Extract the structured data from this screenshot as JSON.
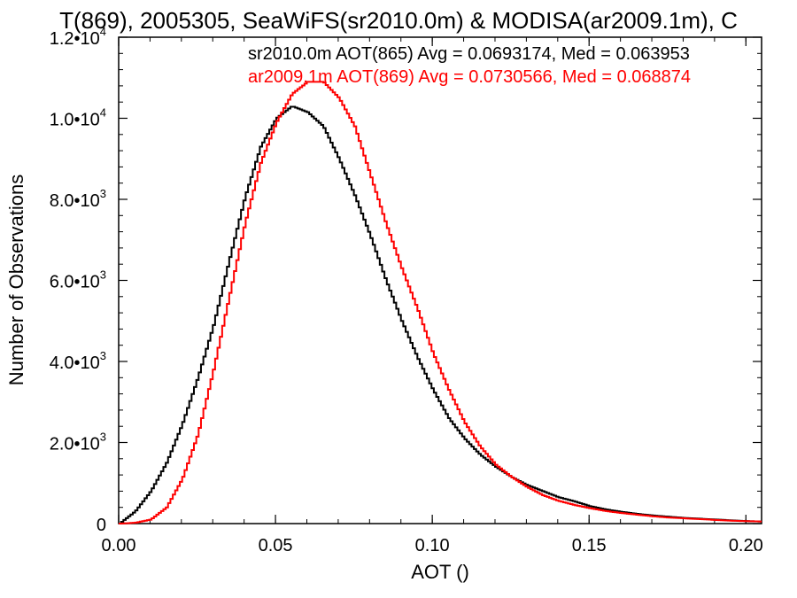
{
  "chart_data": {
    "type": "line",
    "title": "T(869), 2005305, SeaWiFS(sr2010.0m) & MODISA(ar2009.1m), C",
    "xlabel": "AOT ()",
    "ylabel": "Number of Observations",
    "xlim": [
      0.0,
      0.205
    ],
    "ylim": [
      0,
      12000
    ],
    "x_ticks": [
      "0.00",
      "0.05",
      "0.10",
      "0.15",
      "0.20"
    ],
    "x_tick_values": [
      0.0,
      0.05,
      0.1,
      0.15,
      0.2
    ],
    "y_ticks": [
      {
        "value": 0,
        "mantissa": "0",
        "exp": ""
      },
      {
        "value": 2000,
        "mantissa": "2.0•10",
        "exp": "3"
      },
      {
        "value": 4000,
        "mantissa": "4.0•10",
        "exp": "3"
      },
      {
        "value": 6000,
        "mantissa": "6.0•10",
        "exp": "3"
      },
      {
        "value": 8000,
        "mantissa": "8.0•10",
        "exp": "3"
      },
      {
        "value": 10000,
        "mantissa": "1.0•10",
        "exp": "4"
      },
      {
        "value": 12000,
        "mantissa": "1.2•10",
        "exp": "4"
      }
    ],
    "grid": false,
    "legend_position": "top-right",
    "series": [
      {
        "name": "sr2010.0m AOT(865) Avg = 0.0693174, Med = 0.063953",
        "color": "#000000",
        "x": [
          0.0,
          0.005,
          0.01,
          0.015,
          0.02,
          0.025,
          0.03,
          0.035,
          0.04,
          0.045,
          0.05,
          0.055,
          0.06,
          0.065,
          0.07,
          0.075,
          0.08,
          0.085,
          0.09,
          0.095,
          0.1,
          0.105,
          0.11,
          0.115,
          0.12,
          0.125,
          0.13,
          0.135,
          0.14,
          0.145,
          0.15,
          0.155,
          0.16,
          0.165,
          0.17,
          0.175,
          0.18,
          0.185,
          0.19,
          0.195,
          0.2,
          0.205
        ],
        "y": [
          0,
          300,
          800,
          1500,
          2450,
          3600,
          4900,
          6500,
          8050,
          9300,
          10000,
          10300,
          10150,
          9800,
          9000,
          8100,
          7100,
          6000,
          5000,
          4100,
          3300,
          2600,
          2100,
          1700,
          1400,
          1150,
          950,
          800,
          650,
          550,
          430,
          350,
          290,
          240,
          200,
          170,
          140,
          120,
          100,
          80,
          60,
          50
        ]
      },
      {
        "name": "ar2009.1m AOT(869) Avg = 0.0730566, Med = 0.068874",
        "color": "#ff0000",
        "x": [
          0.0,
          0.005,
          0.01,
          0.015,
          0.02,
          0.025,
          0.03,
          0.035,
          0.04,
          0.045,
          0.05,
          0.055,
          0.06,
          0.065,
          0.07,
          0.075,
          0.08,
          0.085,
          0.09,
          0.095,
          0.1,
          0.105,
          0.11,
          0.115,
          0.12,
          0.125,
          0.13,
          0.135,
          0.14,
          0.145,
          0.15,
          0.155,
          0.16,
          0.165,
          0.17,
          0.175,
          0.18,
          0.185,
          0.19,
          0.195,
          0.2,
          0.205
        ],
        "y": [
          0,
          20,
          100,
          400,
          1100,
          2200,
          3800,
          5600,
          7400,
          8900,
          9900,
          10600,
          10900,
          10900,
          10500,
          9800,
          8600,
          7400,
          6300,
          5300,
          4200,
          3300,
          2500,
          1900,
          1450,
          1150,
          900,
          700,
          560,
          460,
          380,
          310,
          260,
          220,
          180,
          150,
          130,
          110,
          90,
          70,
          60,
          50
        ]
      }
    ]
  }
}
